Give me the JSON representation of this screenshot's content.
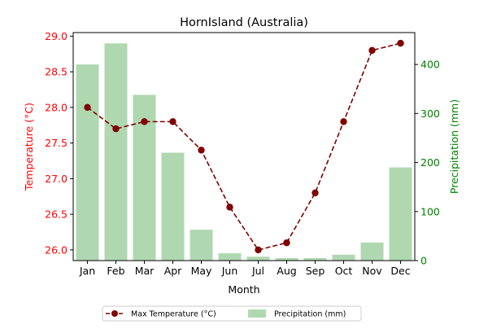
{
  "chart_data": {
    "type": "bar+line",
    "title": "HornIsland (Australia)",
    "xlabel": "Month",
    "categories": [
      "Jan",
      "Feb",
      "Mar",
      "Apr",
      "May",
      "Jun",
      "Jul",
      "Aug",
      "Sep",
      "Oct",
      "Nov",
      "Dec"
    ],
    "axes": {
      "left": {
        "label": "Temperature (°C)",
        "ylim": [
          25.85,
          29.05
        ],
        "ticks": [
          "26.0",
          "26.5",
          "27.0",
          "27.5",
          "28.0",
          "28.5",
          "29.0"
        ],
        "color": "#ff0000"
      },
      "right": {
        "label": "Precipitation (mm)",
        "ylim": [
          0,
          465
        ],
        "ticks": [
          "0",
          "100",
          "200",
          "300",
          "400"
        ],
        "color": "#008000"
      }
    },
    "series": [
      {
        "name": "Max Temperature (°C)",
        "type": "line",
        "axis": "left",
        "color": "#800000",
        "style": "dashed-with-circle-markers",
        "values": [
          28.0,
          27.7,
          27.8,
          27.8,
          27.4,
          26.6,
          26.0,
          26.1,
          26.8,
          27.8,
          28.8,
          28.9
        ]
      },
      {
        "name": "Precipitation (mm)",
        "type": "bar",
        "axis": "right",
        "color": "#b0d8b0",
        "values": [
          400,
          443,
          338,
          220,
          63,
          15,
          8,
          5,
          5,
          12,
          37,
          190
        ]
      }
    ],
    "legend": {
      "placement": "bottom-center"
    },
    "grid": false
  }
}
